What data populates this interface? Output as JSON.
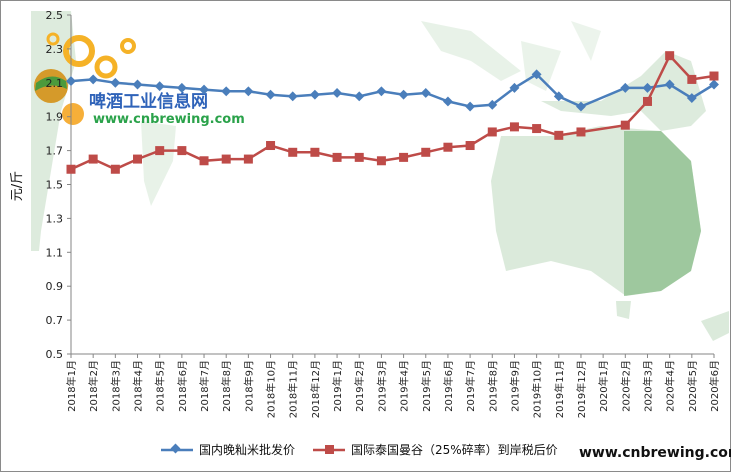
{
  "chart_data": {
    "type": "line",
    "ylabel": "元/斤",
    "ylim": [
      0.5,
      2.5
    ],
    "yticks": [
      "2.5",
      "2.3",
      "2.1",
      "1.9",
      "1.7",
      "1.5",
      "1.3",
      "1.1",
      "0.9",
      "0.7",
      "0.5"
    ],
    "categories": [
      "2018年1月",
      "2018年2月",
      "2018年3月",
      "2018年4月",
      "2018年5月",
      "2018年6月",
      "2018年7月",
      "2018年8月",
      "2018年9月",
      "2018年10月",
      "2018年11月",
      "2018年12月",
      "2019年1月",
      "2019年2月",
      "2019年3月",
      "2019年4月",
      "2019年5月",
      "2019年6月",
      "2019年7月",
      "2019年8月",
      "2019年9月",
      "2019年10月",
      "2019年11月",
      "2019年12月",
      "2020年1月",
      "2020年2月",
      "2020年3月",
      "2020年4月",
      "2020年5月",
      "2020年6月"
    ],
    "series": [
      {
        "name": "国内晚籼米批发价",
        "color": "#4a7ebb",
        "marker": "diamond",
        "values": [
          2.11,
          2.12,
          2.1,
          2.09,
          2.08,
          2.07,
          2.06,
          2.05,
          2.05,
          2.03,
          2.02,
          2.03,
          2.04,
          2.02,
          2.05,
          2.03,
          2.04,
          1.99,
          1.96,
          1.97,
          2.07,
          2.15,
          2.02,
          1.96,
          null,
          2.07,
          2.07,
          2.09,
          2.01,
          2.09
        ]
      },
      {
        "name": "国际泰国曼谷（25%碎率）到岸税后价",
        "color": "#be4b48",
        "marker": "square",
        "values": [
          1.59,
          1.65,
          1.59,
          1.65,
          1.7,
          1.7,
          1.64,
          1.65,
          1.65,
          1.73,
          1.69,
          1.69,
          1.66,
          1.66,
          1.64,
          1.66,
          1.69,
          1.72,
          1.73,
          1.81,
          1.84,
          1.83,
          1.79,
          1.81,
          null,
          1.85,
          1.99,
          2.26,
          2.12,
          2.14
        ]
      }
    ],
    "gaps_connected": true,
    "grid": false,
    "legend_position": "bottom"
  },
  "watermark": {
    "name": "啤酒工业信息网",
    "url": "www.cnbrewing.com"
  },
  "footer_url": "www.cnbrewing.com",
  "colors": {
    "map_land": "#cfe3cf",
    "map_dark": "#8fbf8f",
    "axis": "#868686"
  }
}
